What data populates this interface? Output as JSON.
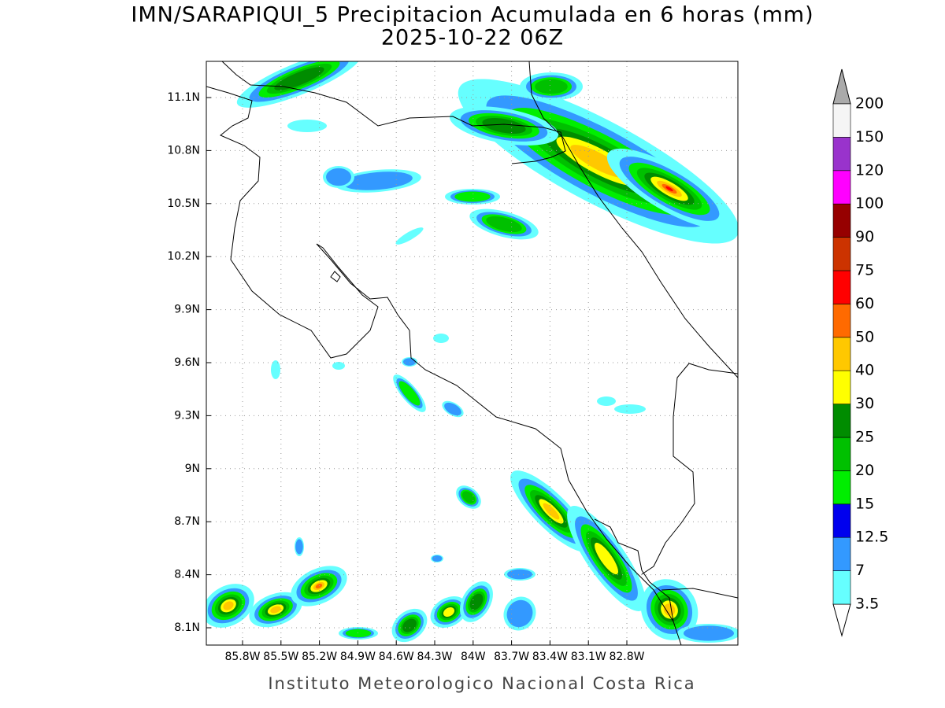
{
  "title": "IMN/SARAPIQUI_5 Precipitacion Acumulada en 6 horas (mm)",
  "subtitle": "2025-10-22 06Z",
  "map": {
    "lat_ticks": [
      {
        "value": 11.1,
        "label": "11.1N"
      },
      {
        "value": 10.8,
        "label": "10.8N"
      },
      {
        "value": 10.5,
        "label": "10.5N"
      },
      {
        "value": 10.2,
        "label": "10.2N"
      },
      {
        "value": 9.9,
        "label": "9.9N"
      },
      {
        "value": 9.6,
        "label": "9.6N"
      },
      {
        "value": 9.3,
        "label": "9.3N"
      },
      {
        "value": 9,
        "label": "9N"
      },
      {
        "value": 8.7,
        "label": "8.7N"
      },
      {
        "value": 8.4,
        "label": "8.4N"
      },
      {
        "value": 8.1,
        "label": "8.1N"
      }
    ],
    "lon_ticks": [
      {
        "value": 85.8,
        "label": "85.8W"
      },
      {
        "value": 85.5,
        "label": "85.5W"
      },
      {
        "value": 85.2,
        "label": "85.2W"
      },
      {
        "value": 84.9,
        "label": "84.9W"
      },
      {
        "value": 84.6,
        "label": "84.6W"
      },
      {
        "value": 84.3,
        "label": "84.3W"
      },
      {
        "value": 84,
        "label": "84W"
      },
      {
        "value": 83.7,
        "label": "83.7W"
      },
      {
        "value": 83.4,
        "label": "83.4W"
      },
      {
        "value": 83.1,
        "label": "83.1W"
      },
      {
        "value": 82.8,
        "label": "82.8W"
      }
    ]
  },
  "colorbar": {
    "levels": [
      3.5,
      7,
      12.5,
      15,
      20,
      25,
      30,
      40,
      50,
      60,
      75,
      90,
      100,
      120,
      150,
      200
    ],
    "colors": [
      "#66ffff",
      "#3399ff",
      "#0000ee",
      "#00ee00",
      "#00c000",
      "#008c00",
      "#ffff00",
      "#ffc800",
      "#ff6a00",
      "#ff0000",
      "#cc3300",
      "#960000",
      "#ff00ff",
      "#9933cc",
      "#f5f5f5"
    ],
    "under_color": "#ffffff",
    "over_color": "#aaaaaa"
  },
  "footer": "Instituto Meteorologico Nacional Costa Rica"
}
